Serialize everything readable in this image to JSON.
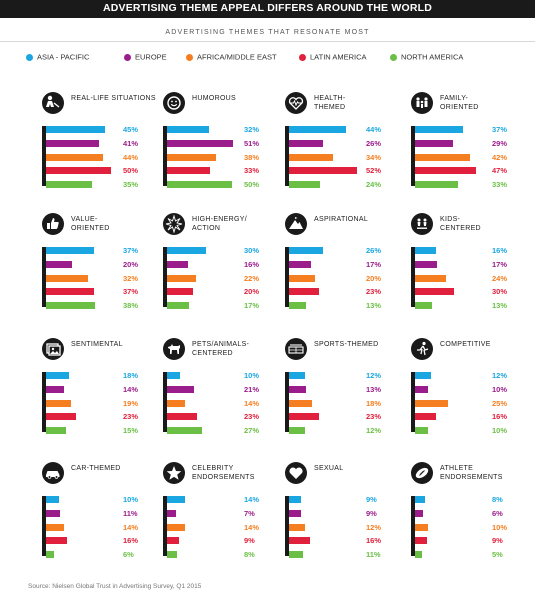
{
  "title": "ADVERTISING THEME APPEAL DIFFERS AROUND THE WORLD",
  "subtitle": "ADVERTISING THEMES THAT RESONATE MOST",
  "source": "Source: Nielsen Global Trust in Advertising Survey, Q1 2015",
  "colors": {
    "title_bar": "#1a1a1a",
    "axis": "#1a1a1a",
    "icon_bg": "#1a1a1a"
  },
  "legend": [
    {
      "label": "ASIA - PACIFIC",
      "color": "#1aa6e0"
    },
    {
      "label": "EUROPE",
      "color": "#9b1d8c"
    },
    {
      "label": "AFRICA/MIDDLE EAST",
      "color": "#f57e20"
    },
    {
      "label": "LATIN AMERICA",
      "color": "#e0203c"
    },
    {
      "label": "NORTH AMERICA",
      "color": "#6bbf45"
    }
  ],
  "chart_data": [
    {
      "type": "bar",
      "title": "REAL-LIFE SITUATIONS",
      "icon": "worker-icon",
      "values": [
        45,
        41,
        44,
        50,
        35
      ],
      "labels": [
        "45%",
        "41%",
        "44%",
        "50%",
        "35%"
      ]
    },
    {
      "type": "bar",
      "title": "HUMOROUS",
      "icon": "smiley-icon",
      "values": [
        32,
        51,
        38,
        33,
        50
      ],
      "labels": [
        "32%",
        "51%",
        "38%",
        "33%",
        "50%"
      ]
    },
    {
      "type": "bar",
      "title": "HEALTH-\nTHEMED",
      "icon": "heartbeat-icon",
      "values": [
        44,
        26,
        34,
        52,
        24
      ],
      "labels": [
        "44%",
        "26%",
        "34%",
        "52%",
        "24%"
      ]
    },
    {
      "type": "bar",
      "title": "FAMILY-\nORIENTED",
      "icon": "family-icon",
      "values": [
        37,
        29,
        42,
        47,
        33
      ],
      "labels": [
        "37%",
        "29%",
        "42%",
        "47%",
        "33%"
      ]
    },
    {
      "type": "bar",
      "title": "VALUE-\nORIENTED",
      "icon": "thumbs-up-icon",
      "values": [
        37,
        20,
        32,
        37,
        38
      ],
      "labels": [
        "37%",
        "20%",
        "32%",
        "37%",
        "38%"
      ]
    },
    {
      "type": "bar",
      "title": "HIGH-ENERGY/\nACTION",
      "icon": "burst-icon",
      "values": [
        30,
        16,
        22,
        20,
        17
      ],
      "labels": [
        "30%",
        "16%",
        "22%",
        "20%",
        "17%"
      ]
    },
    {
      "type": "bar",
      "title": "ASPIRATIONAL",
      "icon": "mountain-icon",
      "values": [
        26,
        17,
        20,
        23,
        13
      ],
      "labels": [
        "26%",
        "17%",
        "20%",
        "23%",
        "13%"
      ]
    },
    {
      "type": "bar",
      "title": "KIDS-\nCENTERED",
      "icon": "kids-icon",
      "values": [
        16,
        17,
        24,
        30,
        13
      ],
      "labels": [
        "16%",
        "17%",
        "24%",
        "30%",
        "13%"
      ]
    },
    {
      "type": "bar",
      "title": "SENTIMENTAL",
      "icon": "photo-icon",
      "values": [
        18,
        14,
        19,
        23,
        15
      ],
      "labels": [
        "18%",
        "14%",
        "19%",
        "23%",
        "15%"
      ]
    },
    {
      "type": "bar",
      "title": "PETS/ANIMALS-\nCENTERED",
      "icon": "dog-icon",
      "values": [
        10,
        21,
        14,
        23,
        27
      ],
      "labels": [
        "10%",
        "21%",
        "14%",
        "23%",
        "27%"
      ]
    },
    {
      "type": "bar",
      "title": "SPORTS-THEMED",
      "icon": "stadium-icon",
      "values": [
        12,
        13,
        18,
        23,
        12
      ],
      "labels": [
        "12%",
        "13%",
        "18%",
        "23%",
        "12%"
      ]
    },
    {
      "type": "bar",
      "title": "COMPETITIVE",
      "icon": "runner-icon",
      "values": [
        12,
        10,
        25,
        16,
        10
      ],
      "labels": [
        "12%",
        "10%",
        "25%",
        "16%",
        "10%"
      ]
    },
    {
      "type": "bar",
      "title": "CAR-THEMED",
      "icon": "car-icon",
      "values": [
        10,
        11,
        14,
        16,
        6
      ],
      "labels": [
        "10%",
        "11%",
        "14%",
        "16%",
        "6%"
      ]
    },
    {
      "type": "bar",
      "title": "CELEBRITY\nENDORSEMENTS",
      "icon": "star-icon",
      "values": [
        14,
        7,
        14,
        9,
        8
      ],
      "labels": [
        "14%",
        "7%",
        "14%",
        "9%",
        "8%"
      ]
    },
    {
      "type": "bar",
      "title": "SEXUAL",
      "icon": "heart-icon",
      "values": [
        9,
        9,
        12,
        16,
        11
      ],
      "labels": [
        "9%",
        "9%",
        "12%",
        "16%",
        "11%"
      ]
    },
    {
      "type": "bar",
      "title": "ATHLETE\nENDORSEMENTS",
      "icon": "football-icon",
      "values": [
        8,
        6,
        10,
        9,
        5
      ],
      "labels": [
        "8%",
        "6%",
        "10%",
        "9%",
        "5%"
      ]
    }
  ]
}
